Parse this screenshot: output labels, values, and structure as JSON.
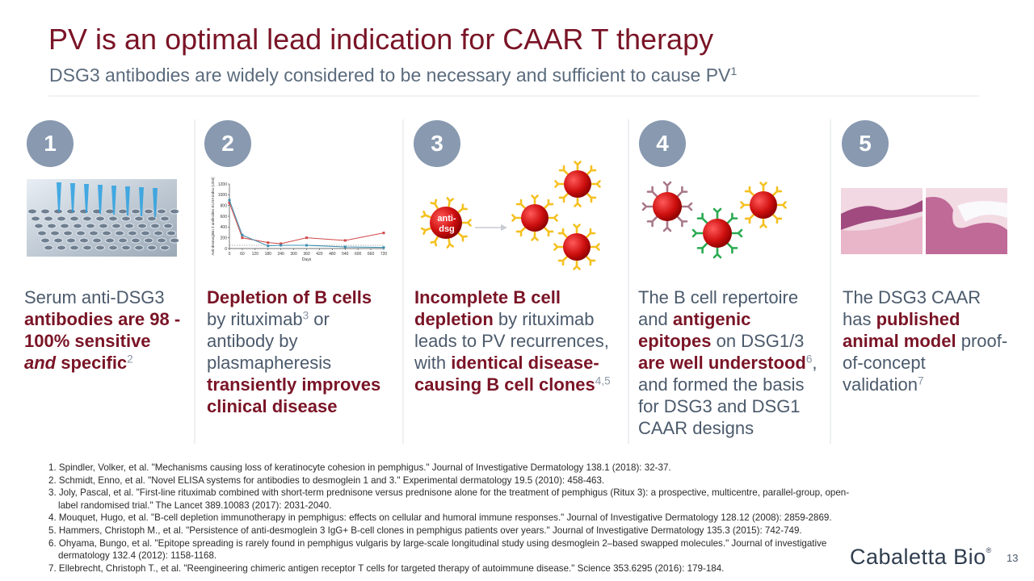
{
  "header": {
    "title": "PV is an optimal lead indication for CAAR T therapy",
    "subtitle": {
      "text": "DSG3 antibodies are widely considered to be necessary and sufficient to cause PV",
      "sup": "1"
    }
  },
  "columns": [
    {
      "number": "1",
      "runs": [
        {
          "text": "Serum anti-DSG3 "
        },
        {
          "text": "antibodies are 98 - 100% sensitive ",
          "bold": true
        },
        {
          "text": "and",
          "bold": true,
          "italic": true
        },
        {
          "text": " specific",
          "bold": true
        },
        {
          "text": "2",
          "sup": true
        }
      ]
    },
    {
      "number": "2",
      "runs": [
        {
          "text": "Depletion of B cells",
          "bold": true
        },
        {
          "text": " by rituximab"
        },
        {
          "text": "3",
          "sup": true
        },
        {
          "text": " or antibody by plasmapheresis "
        },
        {
          "text": "transiently improves clinical disease",
          "bold": true
        }
      ]
    },
    {
      "number": "3",
      "runs": [
        {
          "text": "Incomplete B cell depletion",
          "bold": true
        },
        {
          "text": " by rituximab leads to PV recurrences, with "
        },
        {
          "text": "identical disease-causing B cell clones",
          "bold": true
        },
        {
          "text": "4,5",
          "sup": true
        }
      ]
    },
    {
      "number": "4",
      "runs": [
        {
          "text": "The B cell repertoire and "
        },
        {
          "text": "antigenic epitopes",
          "bold": true
        },
        {
          "text": " on DSG1/3 "
        },
        {
          "text": "are well understood",
          "bold": true
        },
        {
          "text": "6",
          "sup": true
        },
        {
          "text": ", and formed the basis for DSG3 and DSG1 CAAR designs"
        }
      ]
    },
    {
      "number": "5",
      "runs": [
        {
          "text": "The DSG3 CAAR has "
        },
        {
          "text": "published animal model",
          "bold": true
        },
        {
          "text": " proof-of-concept validation"
        },
        {
          "text": "7",
          "sup": true
        }
      ]
    }
  ],
  "figure": {
    "type": "line",
    "ylabel": "Anti-desmoglein 3 antibodies ELISA index (U/ml)",
    "xlabel": "Days",
    "xlim": [
      0,
      720
    ],
    "ylim": [
      0,
      1200
    ],
    "xticks": [
      0,
      60,
      120,
      180,
      240,
      300,
      360,
      420,
      480,
      540,
      600,
      660,
      720
    ],
    "yticks": [
      0,
      200,
      400,
      600,
      800,
      1000,
      1200
    ],
    "series": [
      {
        "color": "#d04848",
        "x": [
          0,
          60,
          180,
          240,
          360,
          540,
          720
        ],
        "values": [
          850,
          200,
          110,
          90,
          200,
          150,
          290
        ]
      },
      {
        "color": "#3a8fb0",
        "x": [
          0,
          60,
          180,
          240,
          360,
          540,
          720
        ],
        "values": [
          900,
          250,
          50,
          60,
          60,
          30,
          20
        ]
      }
    ]
  },
  "diagram": {
    "label": [
      "anti-",
      "dsg"
    ]
  },
  "footnotes": [
    "1. Spindler, Volker, et al. \"Mechanisms causing loss of keratinocyte cohesion in pemphigus.\" Journal of Investigative Dermatology 138.1 (2018): 32-37.",
    "2. Schmidt, Enno, et al. \"Novel ELISA systems for antibodies to desmoglein 1 and 3.\" Experimental dermatology 19.5 (2010): 458-463.",
    "3. Joly, Pascal, et al. \"First-line rituximab combined with short-term prednisone versus prednisone alone for the treatment of pemphigus (Ritux 3): a prospective, multicentre, parallel-group, open-label randomised trial.\" The Lancet 389.10083 (2017): 2031-2040.",
    "4. Mouquet, Hugo, et al. \"B-cell depletion immunotherapy in pemphigus: effects on cellular and humoral immune responses.\" Journal of Investigative Dermatology 128.12 (2008): 2859-2869.",
    "5. Hammers, Christoph M., et al. \"Persistence of anti-desmoglein 3 IgG+ B-cell clones in pemphigus patients over years.\" Journal of Investigative Dermatology 135.3 (2015): 742-749.",
    "6. Ohyama, Bungo, et al. \"Epitope spreading is rarely found in pemphigus vulgaris by large-scale longitudinal study using desmoglein 2–based swapped molecules.\" Journal of investigative dermatology 132.4 (2012): 1158-1168.",
    "7. Ellebrecht, Christoph T., et al. \"Reengineering chimeric antigen receptor T cells for targeted therapy of autoimmune disease.\" Science 353.6295 (2016): 179-184."
  ],
  "logo": {
    "text": "Cabaletta Bio",
    "mark": "®"
  },
  "page_number": "13"
}
